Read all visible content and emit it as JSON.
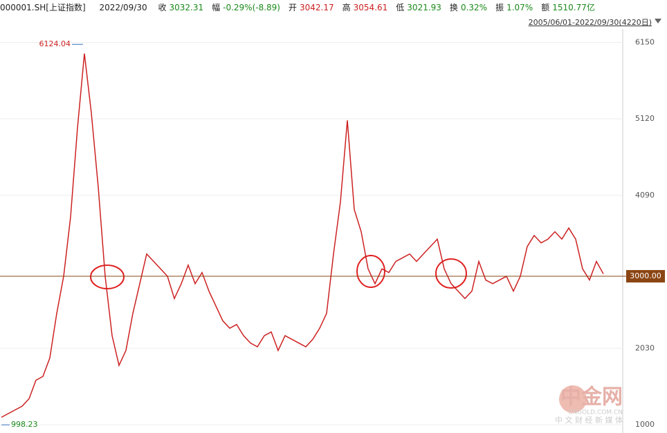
{
  "header": {
    "code": "000001.SH[上证指数]",
    "date": "2022/09/30",
    "items": [
      {
        "label": "收",
        "value": "3032.31"
      },
      {
        "label": "幅",
        "value": "-0.29%(-8.89)"
      },
      {
        "label": "开",
        "value": "3042.17"
      },
      {
        "label": "高",
        "value": "3054.61"
      },
      {
        "label": "低",
        "value": "3021.93"
      },
      {
        "label": "换",
        "value": "0.32%"
      },
      {
        "label": "振",
        "value": "1.07%"
      },
      {
        "label": "额",
        "value": "1510.77亿"
      }
    ],
    "range": "2005/06/01-2022/09/30(4220日)"
  },
  "chart_data": {
    "type": "line",
    "color": "#cc2020",
    "values": [
      1100,
      1150,
      1200,
      1250,
      1350,
      1600,
      1650,
      1900,
      2500,
      3000,
      3800,
      5000,
      6000,
      5200,
      4200,
      3000,
      2200,
      1800,
      2000,
      2500,
      2900,
      3300,
      3200,
      3100,
      3000,
      2700,
      2900,
      3150,
      2900,
      3050,
      2800,
      2600,
      2400,
      2300,
      2350,
      2200,
      2100,
      2050,
      2200,
      2250,
      2000,
      2200,
      2150,
      2100,
      2050,
      2150,
      2300,
      2500,
      3300,
      4000,
      5100,
      3900,
      3600,
      3100,
      2900,
      3100,
      3050,
      3200,
      3250,
      3300,
      3200,
      3300,
      3400,
      3500,
      3100,
      2900,
      2800,
      2700,
      2800,
      3200,
      2950,
      2900,
      2950,
      3000,
      2800,
      3000,
      3400,
      3550,
      3450,
      3500,
      3600,
      3500,
      3650,
      3500,
      3100,
      2950,
      3200,
      3032.31
    ],
    "ylim": [
      935,
      6331
    ],
    "yticks": [
      1000,
      2030,
      4090,
      5120,
      6150
    ],
    "max": 6124.04,
    "min": 998.23,
    "reference_line": {
      "value": 3000,
      "label": "3000.00"
    }
  },
  "watermark": {
    "name": "中金网",
    "site": "CNGOLD.COM.CN",
    "slogan": "中 文 财 经 新 媒 体"
  }
}
